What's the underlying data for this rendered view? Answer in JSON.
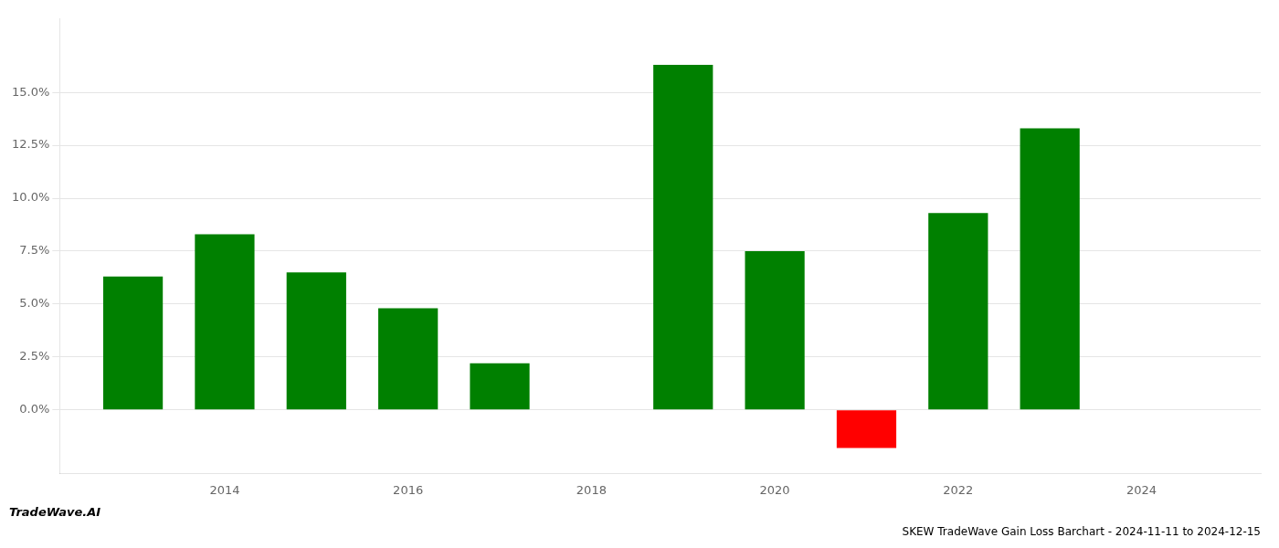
{
  "chart_data": {
    "type": "bar",
    "title": "SKEW TradeWave Gain Loss Barchart - 2024-11-11 to 2024-12-15",
    "annotations": [
      "TradeWave.AI"
    ],
    "x": [
      2013,
      2014,
      2015,
      2016,
      2017,
      2019,
      2020,
      2021,
      2022,
      2023,
      2024
    ],
    "values": [
      0.063,
      0.083,
      0.065,
      0.048,
      0.022,
      0.163,
      0.075,
      -0.018,
      0.093,
      0.133,
      0.0
    ],
    "colors": [
      "#008000",
      "#008000",
      "#008000",
      "#008000",
      "#008000",
      "#008000",
      "#008000",
      "#ff0000",
      "#008000",
      "#008000",
      "#008000"
    ],
    "xlim": [
      2012.2,
      2025.3
    ],
    "xticks": [
      2014,
      2016,
      2018,
      2020,
      2022,
      2024
    ],
    "ylim": [
      -0.03,
      0.185
    ],
    "yticks": [
      {
        "value": 0.0,
        "label": "0.0%"
      },
      {
        "value": 0.025,
        "label": "2.5%"
      },
      {
        "value": 0.05,
        "label": "5.0%"
      },
      {
        "value": 0.075,
        "label": "7.5%"
      },
      {
        "value": 0.1,
        "label": "10.0%"
      },
      {
        "value": 0.125,
        "label": "12.5%"
      },
      {
        "value": 0.15,
        "label": "15.0%"
      }
    ],
    "grid": true
  }
}
